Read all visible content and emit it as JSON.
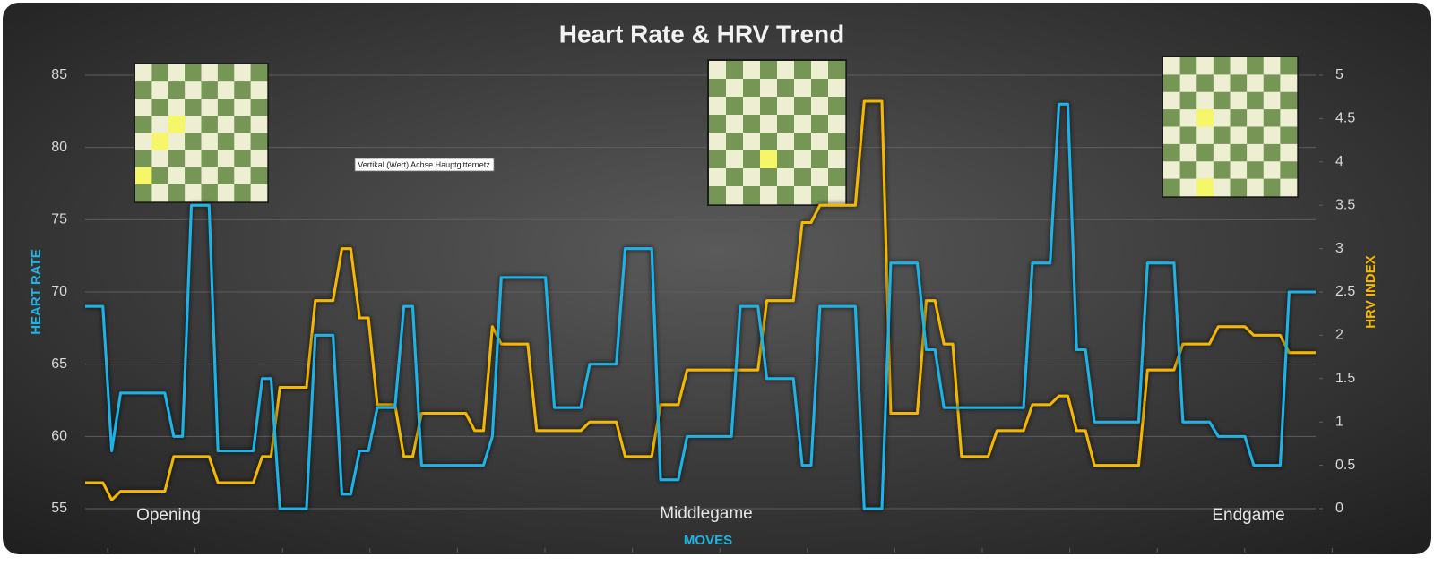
{
  "chart_data": {
    "type": "line",
    "title": "Heart Rate & HRV Trend",
    "x_label": "MOVES",
    "y_label": "HEART RATE",
    "y2_label": "HRV INDEX",
    "ylim": [
      55,
      85
    ],
    "yticks": [
      55,
      60,
      65,
      70,
      75,
      80,
      85
    ],
    "y2lim": [
      0,
      5
    ],
    "y2ticks": [
      0,
      0.5,
      1,
      1.5,
      2,
      2.5,
      3,
      3.5,
      4,
      4.5,
      5
    ],
    "grid": true,
    "annotations": [
      "Opening",
      "Middlegame",
      "Endgame"
    ],
    "tooltip": "Vertikal (Wert) Achse Hauptgitternetz",
    "series": [
      {
        "name": "HEART RATE",
        "color": "#1fb4e8",
        "values": [
          69,
          69,
          69,
          59,
          63,
          63,
          63,
          63,
          63,
          63,
          60,
          60,
          76,
          76,
          76,
          59,
          59,
          59,
          59,
          59,
          64,
          64,
          55,
          55,
          55,
          55,
          67,
          67,
          67,
          56,
          56,
          59,
          59,
          62,
          62,
          62,
          69,
          69,
          58,
          58,
          58,
          58,
          58,
          58,
          58,
          58,
          60,
          71,
          71,
          71,
          71,
          71,
          71,
          62,
          62,
          62,
          62,
          65,
          65,
          65,
          65,
          73,
          73,
          73,
          73,
          57,
          57,
          57,
          60,
          60,
          60,
          60,
          60,
          60,
          69,
          69,
          69,
          64,
          64,
          64,
          64,
          58,
          58,
          69,
          69,
          69,
          69,
          69,
          55,
          55,
          55,
          72,
          72,
          72,
          72,
          66,
          66,
          62,
          62,
          62,
          62,
          62,
          62,
          62,
          62,
          62,
          62,
          72,
          72,
          72,
          83,
          83,
          66,
          66,
          61,
          61,
          61,
          61,
          61,
          61,
          72,
          72,
          72,
          72,
          61,
          61,
          61,
          61,
          60,
          60,
          60,
          60,
          58,
          58,
          58,
          58,
          70,
          70,
          70,
          70
        ]
      },
      {
        "name": "HRV INDEX",
        "color": "#f5b800",
        "axis": "y2",
        "values": [
          0.3,
          0.3,
          0.3,
          0.1,
          0.2,
          0.2,
          0.2,
          0.2,
          0.2,
          0.2,
          0.6,
          0.6,
          0.6,
          0.6,
          0.6,
          0.3,
          0.3,
          0.3,
          0.3,
          0.3,
          0.6,
          0.6,
          1.4,
          1.4,
          1.4,
          1.4,
          2.4,
          2.4,
          2.4,
          3.0,
          3.0,
          2.2,
          2.2,
          1.2,
          1.2,
          1.2,
          0.6,
          0.6,
          1.1,
          1.1,
          1.1,
          1.1,
          1.1,
          1.1,
          0.9,
          0.9,
          2.1,
          1.9,
          1.9,
          1.9,
          1.9,
          0.9,
          0.9,
          0.9,
          0.9,
          0.9,
          0.9,
          1.0,
          1.0,
          1.0,
          1.0,
          0.6,
          0.6,
          0.6,
          0.6,
          1.2,
          1.2,
          1.2,
          1.6,
          1.6,
          1.6,
          1.6,
          1.6,
          1.6,
          1.6,
          1.6,
          1.6,
          2.4,
          2.4,
          2.4,
          2.4,
          3.3,
          3.3,
          3.5,
          3.5,
          3.5,
          3.5,
          3.5,
          4.7,
          4.7,
          4.7,
          1.1,
          1.1,
          1.1,
          1.1,
          2.4,
          2.4,
          1.9,
          1.9,
          0.6,
          0.6,
          0.6,
          0.6,
          0.9,
          0.9,
          0.9,
          0.9,
          1.2,
          1.2,
          1.2,
          1.3,
          1.3,
          0.9,
          0.9,
          0.5,
          0.5,
          0.5,
          0.5,
          0.5,
          0.5,
          1.6,
          1.6,
          1.6,
          1.6,
          1.9,
          1.9,
          1.9,
          1.9,
          2.1,
          2.1,
          2.1,
          2.1,
          2.0,
          2.0,
          2.0,
          2.0,
          1.8,
          1.8,
          1.8,
          1.8
        ]
      }
    ]
  }
}
